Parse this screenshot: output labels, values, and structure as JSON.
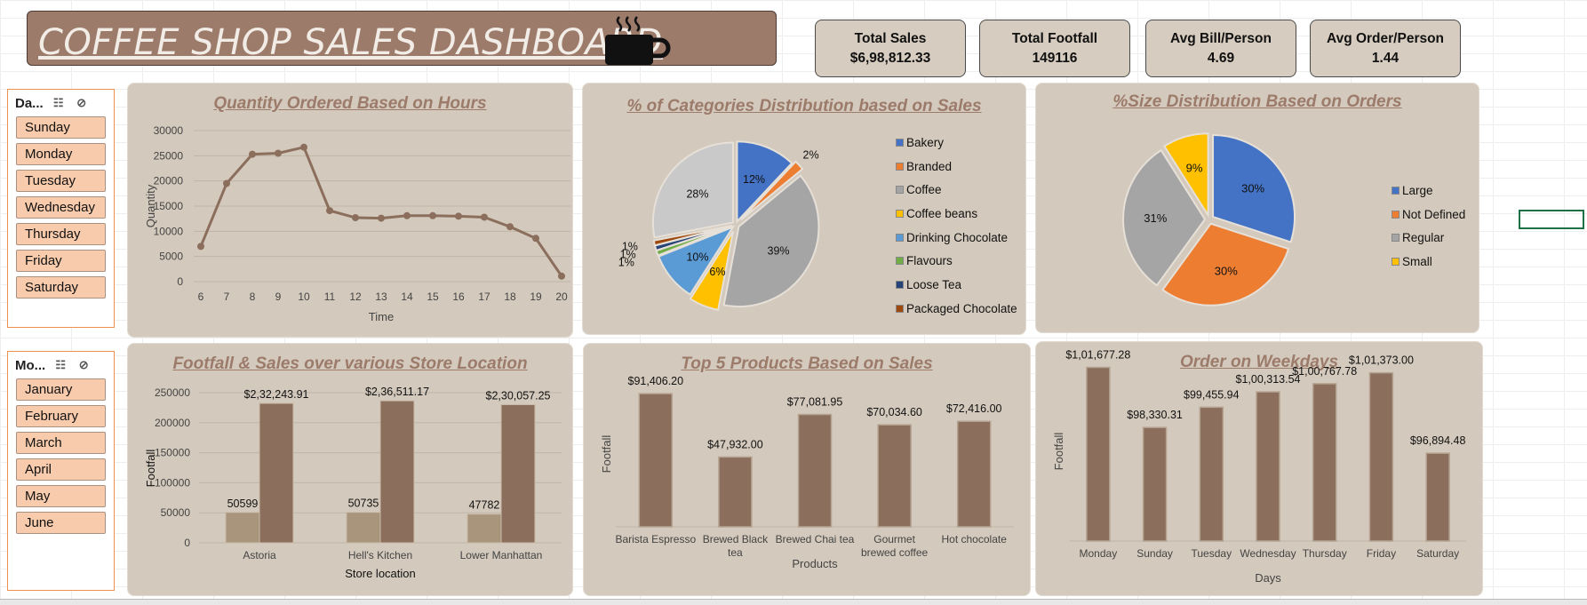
{
  "dashboard": {
    "title": "COFFEE SHOP SALES DASHBOARD",
    "kpis": [
      {
        "label": "Total Sales",
        "value": "$6,98,812.33"
      },
      {
        "label": "Total Footfall",
        "value": "149116"
      },
      {
        "label": "Avg Bill/Person",
        "value": "4.69"
      },
      {
        "label": "Avg Order/Person",
        "value": "1.44"
      }
    ]
  },
  "slicers": {
    "day": {
      "header": "Da...",
      "items": [
        "Sunday",
        "Monday",
        "Tuesday",
        "Wednesday",
        "Thursday",
        "Friday",
        "Saturday"
      ]
    },
    "month": {
      "header": "Mo...",
      "items": [
        "January",
        "February",
        "March",
        "April",
        "May",
        "June"
      ]
    }
  },
  "colors": {
    "brown": "#8c6e5d",
    "light_brown": "#a9957b",
    "panel": "#d3c9bc",
    "title": "#9c7b6b",
    "slicer_item": "#f9cbad"
  },
  "chart_data": [
    {
      "id": "hours",
      "type": "line",
      "title": "Quantity Ordered Based on Hours",
      "xlabel": "Time",
      "ylabel": "Quantity",
      "ylim": [
        0,
        30000
      ],
      "yticks": [
        0,
        5000,
        10000,
        15000,
        20000,
        25000,
        30000
      ],
      "x": [
        6,
        7,
        8,
        9,
        10,
        11,
        12,
        13,
        14,
        15,
        16,
        17,
        18,
        19,
        20
      ],
      "values": [
        7000,
        19500,
        25300,
        25500,
        26700,
        14100,
        12700,
        12600,
        13100,
        13100,
        13000,
        12800,
        10900,
        8600,
        1100
      ],
      "color": "#8c6e5d"
    },
    {
      "id": "categories",
      "type": "pie",
      "title": "% of Categories Distribution based on Sales",
      "categories": [
        "Bakery",
        "Branded",
        "Coffee",
        "Coffee beans",
        "Drinking Chocolate",
        "Flavours",
        "Loose Tea",
        "Packaged Chocolate"
      ],
      "values": [
        12,
        2,
        39,
        6,
        10,
        1,
        1,
        1
      ],
      "labels": [
        "12%",
        "2%",
        "39%",
        "6%",
        "10%",
        "1%",
        "1%",
        "1%"
      ],
      "extra_slice": {
        "value": 28,
        "label": "28%"
      },
      "colors": [
        "#4472c4",
        "#ed7d31",
        "#a5a5a5",
        "#ffc000",
        "#5b9bd5",
        "#70ad47",
        "#264478",
        "#9e480e"
      ],
      "extra_color": "#c9c9c9",
      "legend_position": "right"
    },
    {
      "id": "sizes",
      "type": "pie",
      "title": "%Size Distribution Based on Orders",
      "categories": [
        "Large",
        "Not Defined",
        "Regular",
        "Small"
      ],
      "values": [
        30,
        30,
        31,
        9
      ],
      "labels": [
        "30%",
        "30%",
        "31%",
        "9%"
      ],
      "colors": [
        "#4472c4",
        "#ed7d31",
        "#a5a5a5",
        "#ffc000"
      ],
      "legend_position": "right"
    },
    {
      "id": "locations",
      "type": "bar",
      "title": "Footfall & Sales over various Store Location",
      "xlabel": "Store location",
      "ylabel": "Footfall",
      "ylim": [
        0,
        250000
      ],
      "yticks": [
        0,
        50000,
        100000,
        150000,
        200000,
        250000
      ],
      "categories": [
        "Astoria",
        "Hell's Kitchen",
        "Lower Manhattan"
      ],
      "series": [
        {
          "values": [
            50599,
            50735,
            47782
          ],
          "labels": [
            "50599",
            "50735",
            "47782"
          ],
          "color": "#a9957b"
        },
        {
          "values": [
            232243.91,
            236511.17,
            230057.25
          ],
          "labels": [
            "$2,32,243.91",
            "$2,36,511.17",
            "$2,30,057.25"
          ],
          "color": "#8c6e5d"
        }
      ]
    },
    {
      "id": "products",
      "type": "bar",
      "title": "Top 5 Products Based on Sales",
      "xlabel": "Products",
      "ylabel": "Footfall",
      "ylim": [
        0,
        100000
      ],
      "categories": [
        "Barista Espresso",
        "Brewed Black tea",
        "Brewed Chai tea",
        "Gourmet brewed coffee",
        "Hot chocolate"
      ],
      "category_lines": [
        [
          "Barista Espresso"
        ],
        [
          "Brewed Black",
          "tea"
        ],
        [
          "Brewed Chai tea"
        ],
        [
          "Gourmet",
          "brewed coffee"
        ],
        [
          "Hot chocolate"
        ]
      ],
      "values": [
        91406.2,
        47932.0,
        77081.95,
        70034.6,
        72416.0
      ],
      "labels": [
        "$91,406.20",
        "$47,932.00",
        "$77,081.95",
        "$70,034.60",
        "$72,416.00"
      ],
      "color": "#8c6e5d"
    },
    {
      "id": "weekdays",
      "type": "bar",
      "title": "Order on Weekdays",
      "xlabel": "Days",
      "ylabel": "Footfall",
      "ylim": [
        92000,
        102000
      ],
      "categories": [
        "Monday",
        "Sunday",
        "Tuesday",
        "Wednesday",
        "Thursday",
        "Friday",
        "Saturday"
      ],
      "values": [
        101677.28,
        98330.31,
        99455.94,
        100313.54,
        100767.78,
        101373.0,
        96894.48
      ],
      "labels": [
        "$1,01,677.28",
        "$98,330.31",
        "$99,455.94",
        "$1,00,313.54",
        "$1,00,767.78",
        "$1,01,373.00",
        "$96,894.48"
      ],
      "color": "#8c6e5d"
    }
  ]
}
